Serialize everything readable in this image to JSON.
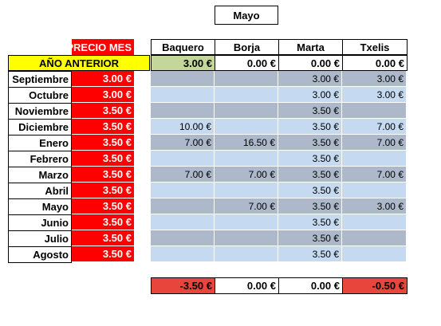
{
  "title": "Mayo",
  "header": {
    "price_label": "PRECIO MES",
    "people": [
      "Baquero",
      "Borja",
      "Marta",
      "Txelis"
    ]
  },
  "previous_year": {
    "label": "AÑO ANTERIOR",
    "values": [
      "3.00 €",
      "0.00 €",
      "0.00 €",
      "0.00 €"
    ],
    "colors": [
      "#c4d79b",
      "#ffffff",
      "#ffffff",
      "#ffffff"
    ]
  },
  "rows": [
    {
      "month": "Septiembre",
      "price": "3.00 €",
      "values": [
        "",
        "",
        "3.00 €",
        "3.00 €"
      ]
    },
    {
      "month": "Octubre",
      "price": "3.00 €",
      "values": [
        "",
        "",
        "3.00 €",
        "3.00 €"
      ]
    },
    {
      "month": "Noviembre",
      "price": "3.50 €",
      "values": [
        "",
        "",
        "3.50 €",
        ""
      ]
    },
    {
      "month": "Diciembre",
      "price": "3.50 €",
      "values": [
        "10.00 €",
        "",
        "3.50 €",
        "7.00 €"
      ]
    },
    {
      "month": "Enero",
      "price": "3.50 €",
      "values": [
        "7.00 €",
        "16.50 €",
        "3.50 €",
        "7.00 €"
      ]
    },
    {
      "month": "Febrero",
      "price": "3.50 €",
      "values": [
        "",
        "",
        "3.50 €",
        ""
      ]
    },
    {
      "month": "Marzo",
      "price": "3.50 €",
      "values": [
        "7.00 €",
        "7.00 €",
        "3.50 €",
        "7.00 €"
      ]
    },
    {
      "month": "Abril",
      "price": "3.50 €",
      "values": [
        "",
        "",
        "3.50 €",
        ""
      ]
    },
    {
      "month": "Mayo",
      "price": "3.50 €",
      "values": [
        "",
        "7.00 €",
        "3.50 €",
        "3.00 €"
      ]
    },
    {
      "month": "Junio",
      "price": "3.50 €",
      "values": [
        "",
        "",
        "3.50 €",
        ""
      ]
    },
    {
      "month": "Julio",
      "price": "3.50 €",
      "values": [
        "",
        "",
        "3.50 €",
        ""
      ]
    },
    {
      "month": "Agosto",
      "price": "3.50 €",
      "values": [
        "",
        "",
        "3.50 €",
        ""
      ]
    }
  ],
  "totals": {
    "values": [
      "-3.50 €",
      "0.00 €",
      "0.00 €",
      "-0.50 €"
    ],
    "colors": [
      "#e8453c",
      "#ffffff",
      "#ffffff",
      "#e8453c"
    ]
  },
  "colors": {
    "price_red": "#ff0000",
    "previous_year_yellow": "#ffff00",
    "band_dark": "#adb9ca",
    "band_light": "#c5d9f1"
  }
}
